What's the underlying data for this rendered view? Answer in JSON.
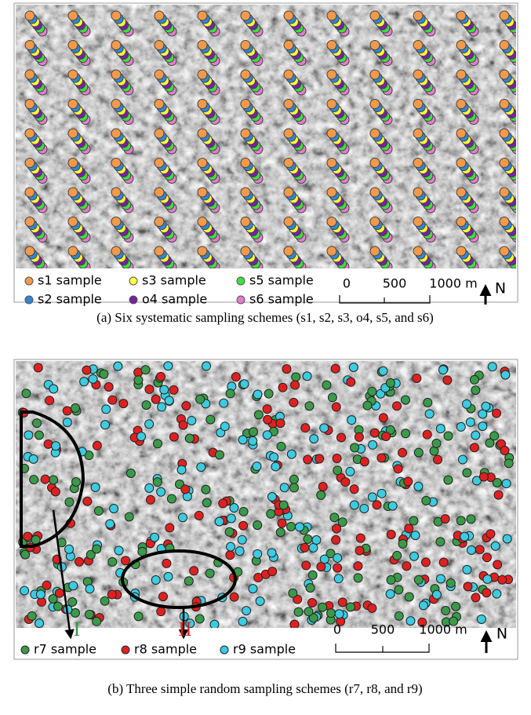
{
  "panels": [
    {
      "legend": [
        "s1 sample",
        "s3 sample",
        "s5 sample",
        "s2 sample",
        "o4 sample",
        "s6 sample"
      ],
      "scale": [
        "0",
        "500",
        "1000 m"
      ],
      "north": "N",
      "caption": "(a) Six systematic sampling schemes (s1, s2, s3, o4, s5, and s6)"
    },
    {
      "legend": [
        "r7 sample",
        "r8 sample",
        "r9 sample"
      ],
      "markers": [
        "I",
        "II"
      ],
      "scale": [
        "0",
        "500",
        "1000 m"
      ],
      "north": "N",
      "caption": "(b) Three simple random sampling schemes (r7, r8, and r9)"
    }
  ]
}
